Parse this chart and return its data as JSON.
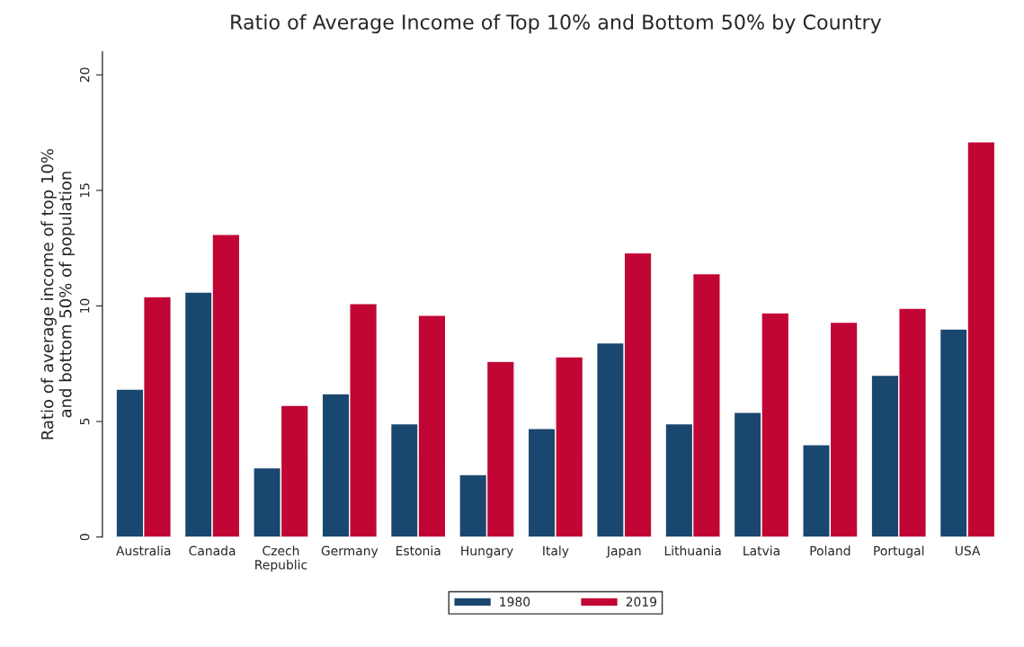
{
  "chart_data": {
    "type": "bar",
    "title": "Ratio of Average Income of Top 10% and Bottom 50% by Country",
    "ylabel": "Ratio of average income of top 10%\nand bottom 50% of population",
    "categories": [
      "Australia",
      "Canada",
      "Czech\nRepublic",
      "Germany",
      "Estonia",
      "Hungary",
      "Italy",
      "Japan",
      "Lithuania",
      "Latvia",
      "Poland",
      "Portugal",
      "USA"
    ],
    "series": [
      {
        "name": "1980",
        "color": "#1a476f",
        "values": [
          6.4,
          10.6,
          3.0,
          6.2,
          4.9,
          2.7,
          4.7,
          8.4,
          4.9,
          5.4,
          4.0,
          7.0,
          9.0
        ]
      },
      {
        "name": "2019",
        "color": "#c10534",
        "values": [
          10.4,
          13.1,
          5.7,
          10.1,
          9.6,
          7.6,
          7.8,
          12.3,
          11.4,
          9.7,
          9.3,
          9.9,
          17.1
        ]
      }
    ],
    "ylim": [
      0,
      21
    ],
    "yticks": [
      0,
      5,
      10,
      15,
      20
    ],
    "grid": false,
    "legend": "bottom"
  }
}
